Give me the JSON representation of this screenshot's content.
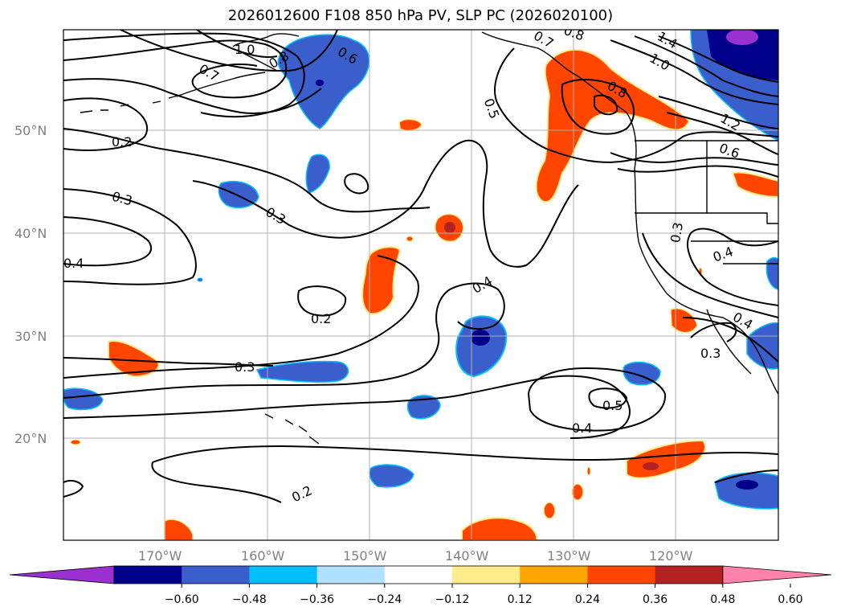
{
  "title": "2026012600 F108 850 hPa PV, SLP PC (2026020100)",
  "lat_labels": [
    "50°N",
    "40°N",
    "30°N",
    "20°N"
  ],
  "lon_labels": [
    "170°W",
    "160°W",
    "150°W",
    "140°W",
    "130°W",
    "120°W"
  ],
  "contour_labels": [
    "1.0",
    "0.8",
    "0.7",
    "0.6",
    "0.7",
    "0.8",
    "1.4",
    "1.0",
    "0.5",
    "0.8",
    "1.2",
    "0.6",
    "0.2",
    "0.3",
    "0.3",
    "0.4",
    "0.2",
    "0.4",
    "0.4",
    "0.4",
    "0.3",
    "0.3",
    "0.5",
    "0.4",
    "0.2",
    "0.3"
  ],
  "colorbar": {
    "ticks": [
      "−0.60",
      "−0.48",
      "−0.36",
      "−0.24",
      "−0.12",
      "0.12",
      "0.24",
      "0.36",
      "0.48",
      "0.60"
    ],
    "colors": [
      "#9b30d0",
      "#00008b",
      "#3a5fcd",
      "#00bfff",
      "#b0e2ff",
      "#ffffff",
      "#ffec8b",
      "#ffa500",
      "#ff4500",
      "#b22222",
      "#ff82ab"
    ]
  },
  "palette": {
    "neg_dark": "#00008b",
    "neg_mid": "#3a5fcd",
    "neg_light": "#00bfff",
    "neg_pale": "#b0e2ff",
    "pos_pale": "#ffec8b",
    "pos_light": "#ffa500",
    "pos_mid": "#ff4500",
    "pos_dark": "#b22222",
    "neg_purple": "#9b30d0"
  }
}
